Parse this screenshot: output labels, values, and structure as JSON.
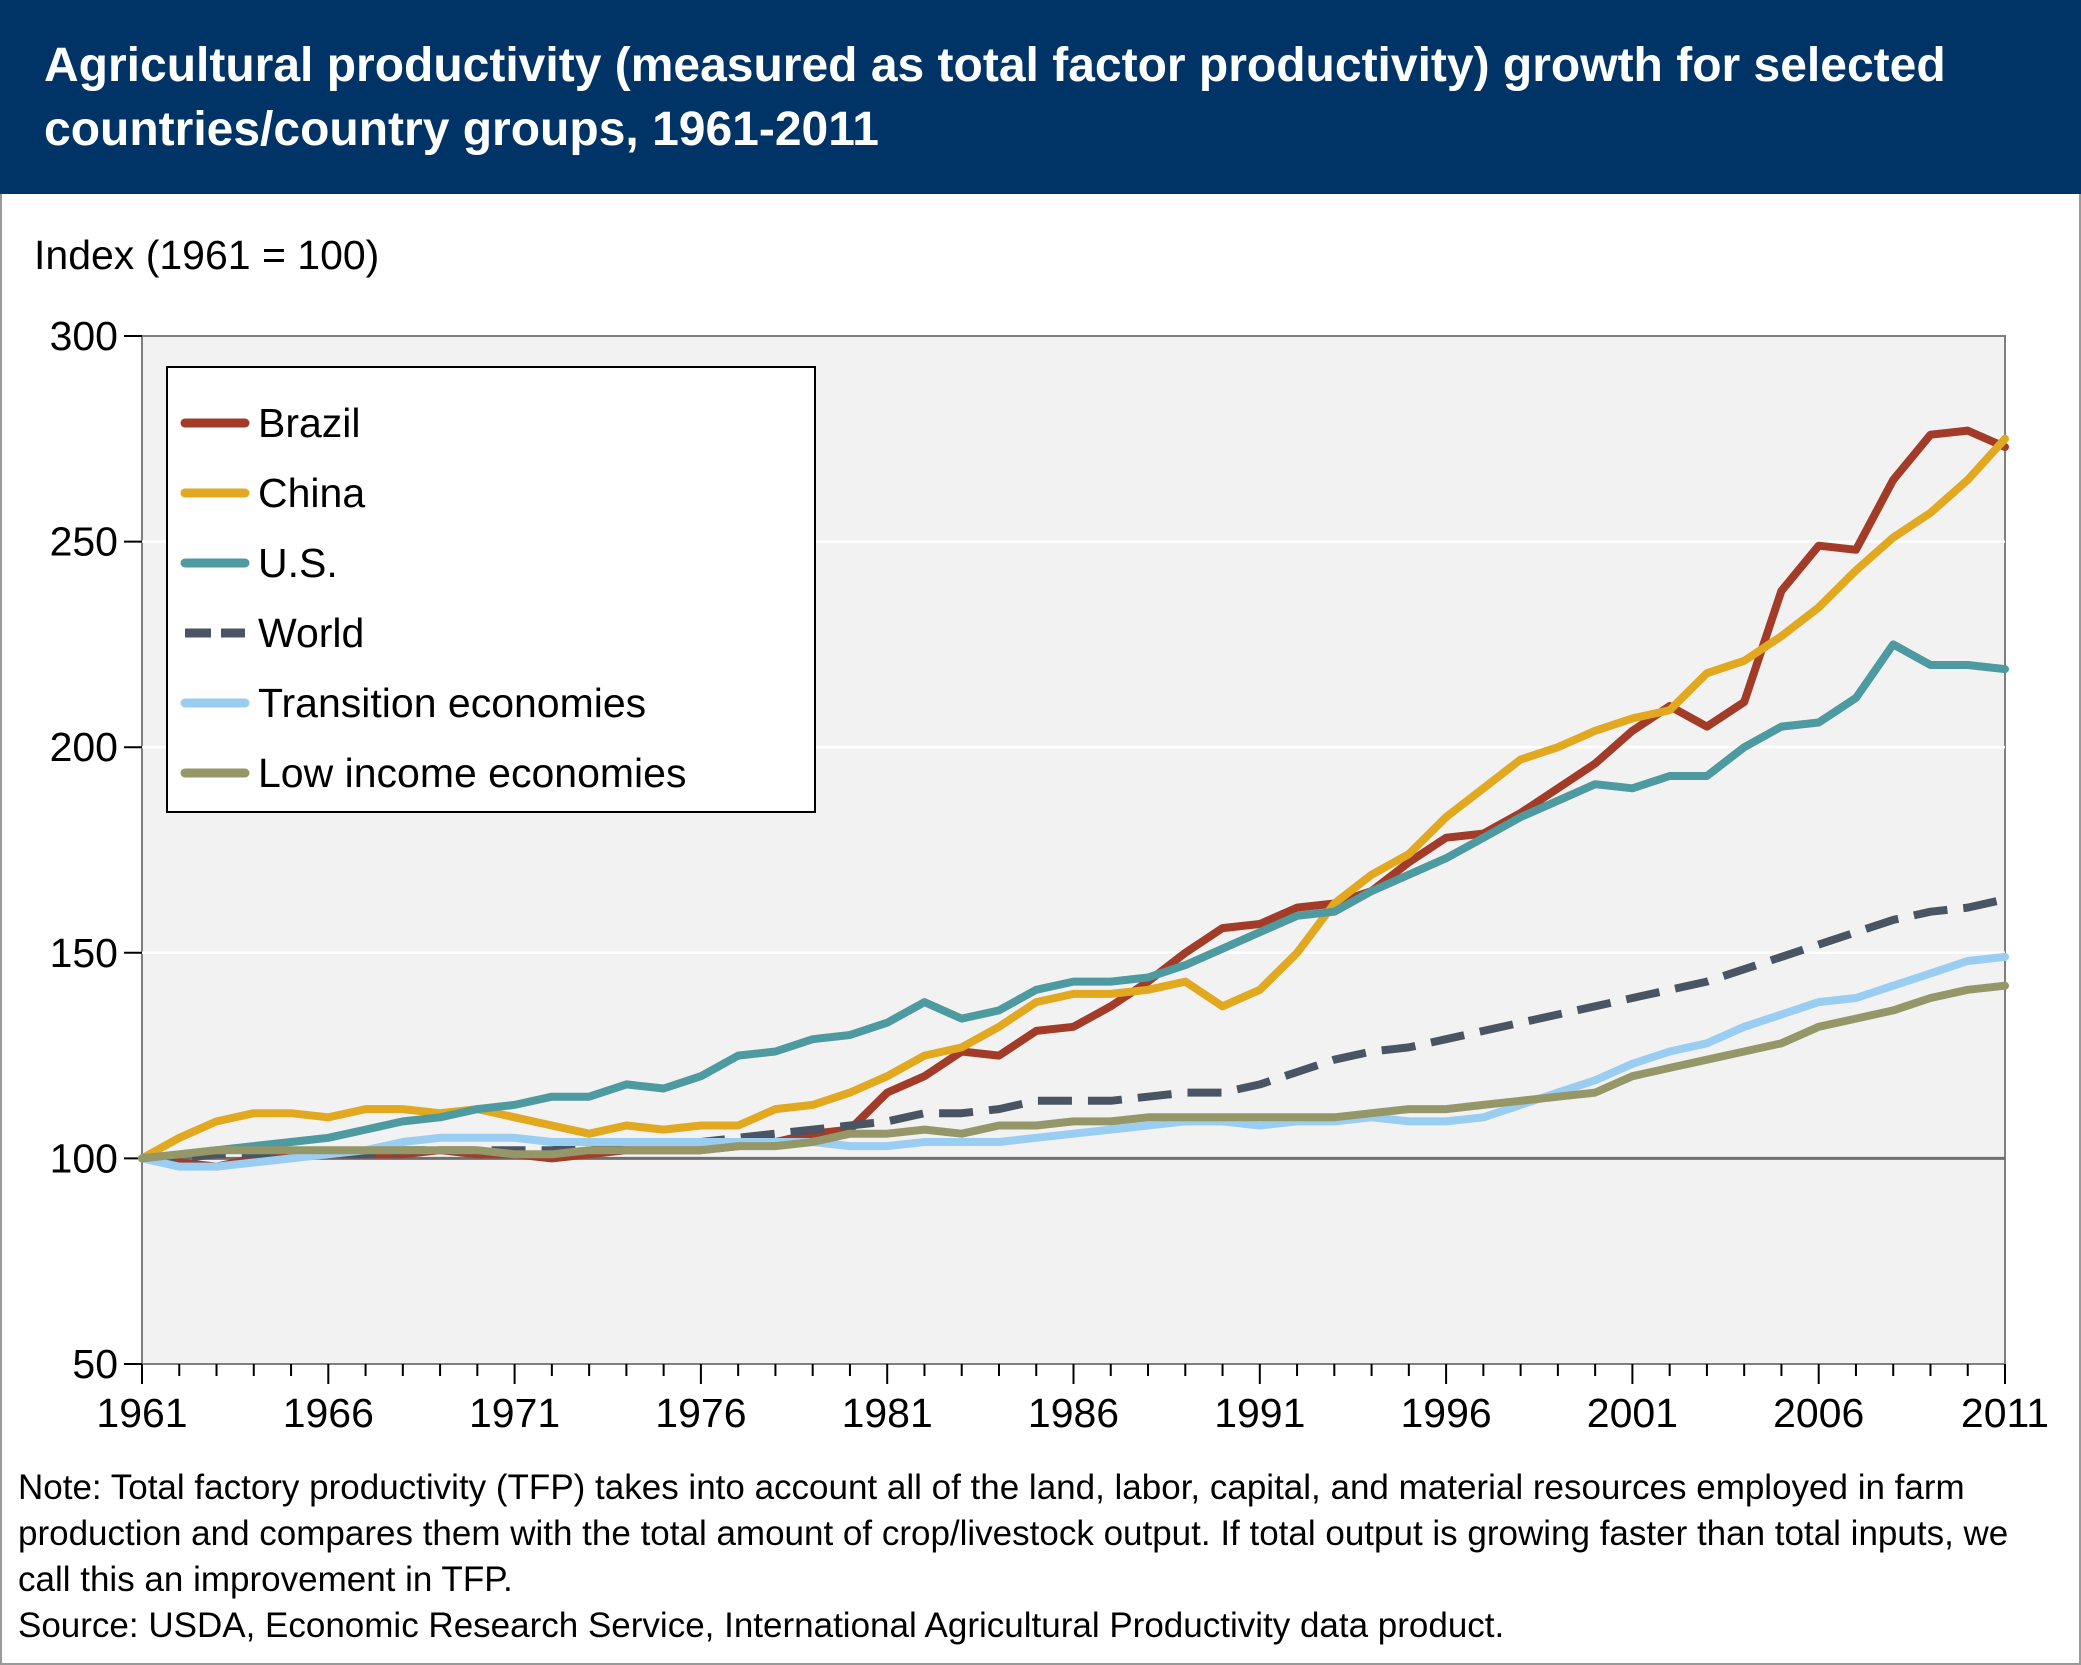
{
  "header": {
    "title": "Agricultural productivity (measured as total factor productivity) growth for selected countries/country groups, 1961-2011"
  },
  "footer": {
    "note": "Note: Total factory productivity (TFP) takes into account all of the land, labor, capital, and material resources employed in farm production and compares them with the total amount of crop/livestock output. If total output is growing faster than total inputs, we call this an improvement in TFP.",
    "source": "Source: USDA, Economic Research Service, International Agricultural Productivity data product."
  },
  "chart_data": {
    "type": "line",
    "title": "Agricultural productivity (measured as total factor productivity) growth for selected countries/country groups, 1961-2011",
    "ylabel": "Index (1961 = 100)",
    "xlabel": "",
    "xlim": [
      1961,
      2011
    ],
    "ylim": [
      50,
      300
    ],
    "xticks": [
      1961,
      1966,
      1971,
      1976,
      1981,
      1986,
      1991,
      1996,
      2001,
      2006,
      2011
    ],
    "yticks": [
      50,
      100,
      150,
      200,
      250,
      300
    ],
    "grid": "horizontal",
    "reference_line": 100,
    "legend_position": "top-left",
    "x": [
      1961,
      1962,
      1963,
      1964,
      1965,
      1966,
      1967,
      1968,
      1969,
      1970,
      1971,
      1972,
      1973,
      1974,
      1975,
      1976,
      1977,
      1978,
      1979,
      1980,
      1981,
      1982,
      1983,
      1984,
      1985,
      1986,
      1987,
      1988,
      1989,
      1990,
      1991,
      1992,
      1993,
      1994,
      1995,
      1996,
      1997,
      1998,
      1999,
      2000,
      2001,
      2002,
      2003,
      2004,
      2005,
      2006,
      2007,
      2008,
      2009,
      2010,
      2011
    ],
    "series": [
      {
        "name": "Brazil",
        "color": "#a23b27",
        "dash": false,
        "values": [
          100,
          99,
          98,
          100,
          101,
          101,
          101,
          101,
          102,
          101,
          101,
          100,
          101,
          102,
          102,
          102,
          103,
          104,
          106,
          107,
          116,
          120,
          126,
          125,
          131,
          132,
          137,
          143,
          150,
          156,
          157,
          161,
          162,
          165,
          172,
          178,
          179,
          184,
          190,
          196,
          204,
          210,
          205,
          211,
          238,
          249,
          248,
          265,
          276,
          277,
          273
        ]
      },
      {
        "name": "China",
        "color": "#e1a820",
        "dash": false,
        "values": [
          100,
          105,
          109,
          111,
          111,
          110,
          112,
          112,
          111,
          112,
          110,
          108,
          106,
          108,
          107,
          108,
          108,
          112,
          113,
          116,
          120,
          125,
          127,
          132,
          138,
          140,
          140,
          141,
          143,
          137,
          141,
          150,
          162,
          169,
          174,
          183,
          190,
          197,
          200,
          204,
          207,
          209,
          218,
          221,
          227,
          234,
          243,
          251,
          257,
          265,
          275
        ]
      },
      {
        "name": "U.S.",
        "color": "#4d9aa0",
        "dash": false,
        "values": [
          100,
          101,
          102,
          103,
          104,
          105,
          107,
          109,
          110,
          112,
          113,
          115,
          115,
          118,
          117,
          120,
          125,
          126,
          129,
          130,
          133,
          138,
          134,
          136,
          141,
          143,
          143,
          144,
          147,
          151,
          155,
          159,
          160,
          165,
          169,
          173,
          178,
          183,
          187,
          191,
          190,
          193,
          193,
          200,
          205,
          206,
          212,
          225,
          220,
          220,
          219
        ]
      },
      {
        "name": "World",
        "color": "#4a5563",
        "dash": true,
        "values": [
          100,
          100,
          101,
          101,
          101,
          101,
          101,
          102,
          102,
          102,
          102,
          102,
          103,
          104,
          104,
          104,
          105,
          106,
          107,
          108,
          109,
          111,
          111,
          112,
          114,
          114,
          114,
          115,
          116,
          116,
          118,
          121,
          124,
          126,
          127,
          129,
          131,
          133,
          135,
          137,
          139,
          141,
          143,
          146,
          149,
          152,
          155,
          158,
          160,
          161,
          163
        ]
      },
      {
        "name": "Transition economies",
        "color": "#9acdf2",
        "dash": false,
        "values": [
          100,
          98,
          98,
          99,
          100,
          101,
          102,
          104,
          105,
          105,
          105,
          104,
          104,
          104,
          104,
          104,
          104,
          104,
          104,
          103,
          103,
          104,
          104,
          104,
          105,
          106,
          107,
          108,
          109,
          109,
          108,
          109,
          109,
          110,
          109,
          109,
          110,
          113,
          116,
          119,
          123,
          126,
          128,
          132,
          135,
          138,
          139,
          142,
          145,
          148,
          149
        ]
      },
      {
        "name": "Low income economies",
        "color": "#969768",
        "dash": false,
        "values": [
          100,
          101,
          102,
          102,
          102,
          102,
          102,
          102,
          102,
          102,
          101,
          101,
          102,
          102,
          102,
          102,
          103,
          103,
          104,
          106,
          106,
          107,
          106,
          108,
          108,
          109,
          109,
          110,
          110,
          110,
          110,
          110,
          110,
          111,
          112,
          112,
          113,
          114,
          115,
          116,
          120,
          122,
          124,
          126,
          128,
          132,
          134,
          136,
          139,
          141,
          142
        ]
      }
    ]
  }
}
